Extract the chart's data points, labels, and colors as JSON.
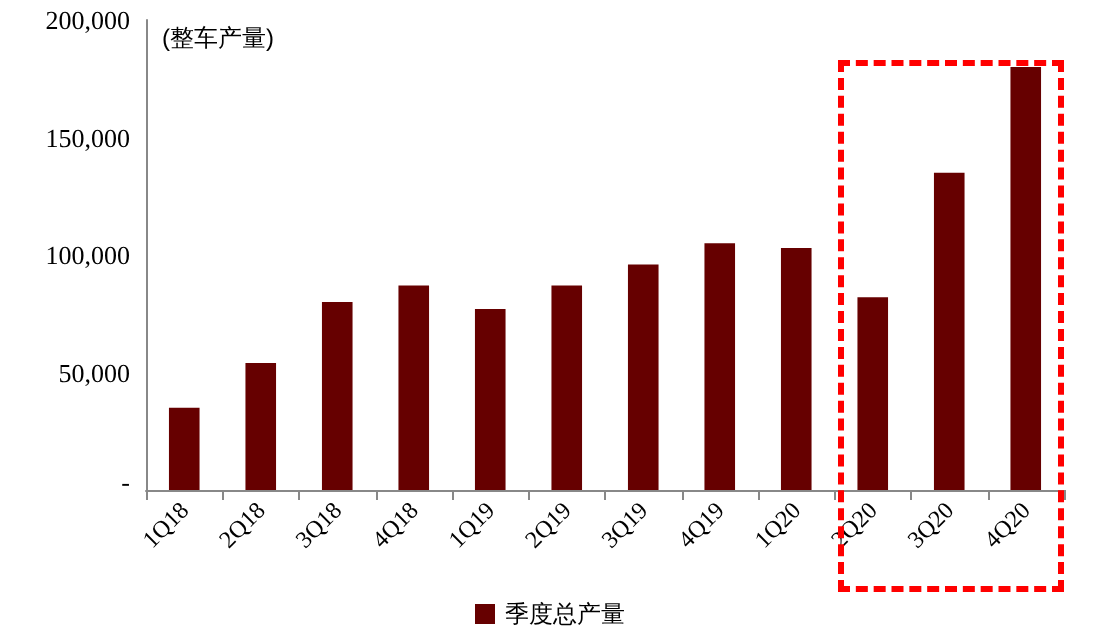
{
  "chart_data": {
    "type": "bar",
    "ylabel": "(整车产量)",
    "categories": [
      "1Q18",
      "2Q18",
      "3Q18",
      "4Q18",
      "1Q19",
      "2Q19",
      "3Q19",
      "4Q19",
      "1Q20",
      "2Q20",
      "3Q20",
      "4Q20"
    ],
    "series": [
      {
        "name": "季度总产量",
        "color": "#660000",
        "values": [
          35000,
          54000,
          80000,
          87000,
          77000,
          87000,
          96000,
          105000,
          103000,
          82000,
          135000,
          180000
        ]
      }
    ],
    "ylim": [
      0,
      200000
    ],
    "yticks": [
      {
        "value": 0,
        "label": "-"
      },
      {
        "value": 50000,
        "label": "50,000"
      },
      {
        "value": 100000,
        "label": "100,000"
      },
      {
        "value": 150000,
        "label": "150,000"
      },
      {
        "value": 200000,
        "label": "200,000"
      }
    ],
    "grid": false,
    "legend": "bottom"
  }
}
